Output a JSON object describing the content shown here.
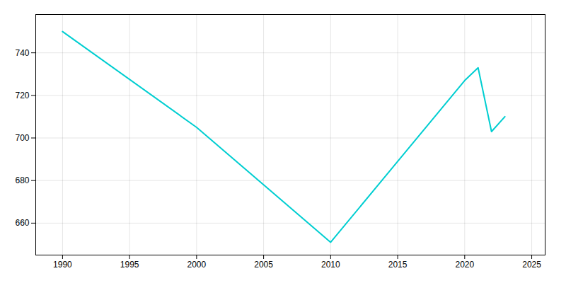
{
  "chart_data": {
    "type": "line",
    "x": [
      1990,
      2000,
      2010,
      2020,
      2021,
      2022,
      2023
    ],
    "values": [
      750,
      705,
      651,
      727,
      733,
      703,
      710
    ],
    "color": "#00CED1",
    "xlim": [
      1988,
      2026
    ],
    "ylim": [
      645,
      758
    ],
    "xticks": [
      1990,
      1995,
      2000,
      2005,
      2010,
      2015,
      2020,
      2025
    ],
    "yticks": [
      660,
      680,
      700,
      720,
      740
    ],
    "grid": true
  }
}
